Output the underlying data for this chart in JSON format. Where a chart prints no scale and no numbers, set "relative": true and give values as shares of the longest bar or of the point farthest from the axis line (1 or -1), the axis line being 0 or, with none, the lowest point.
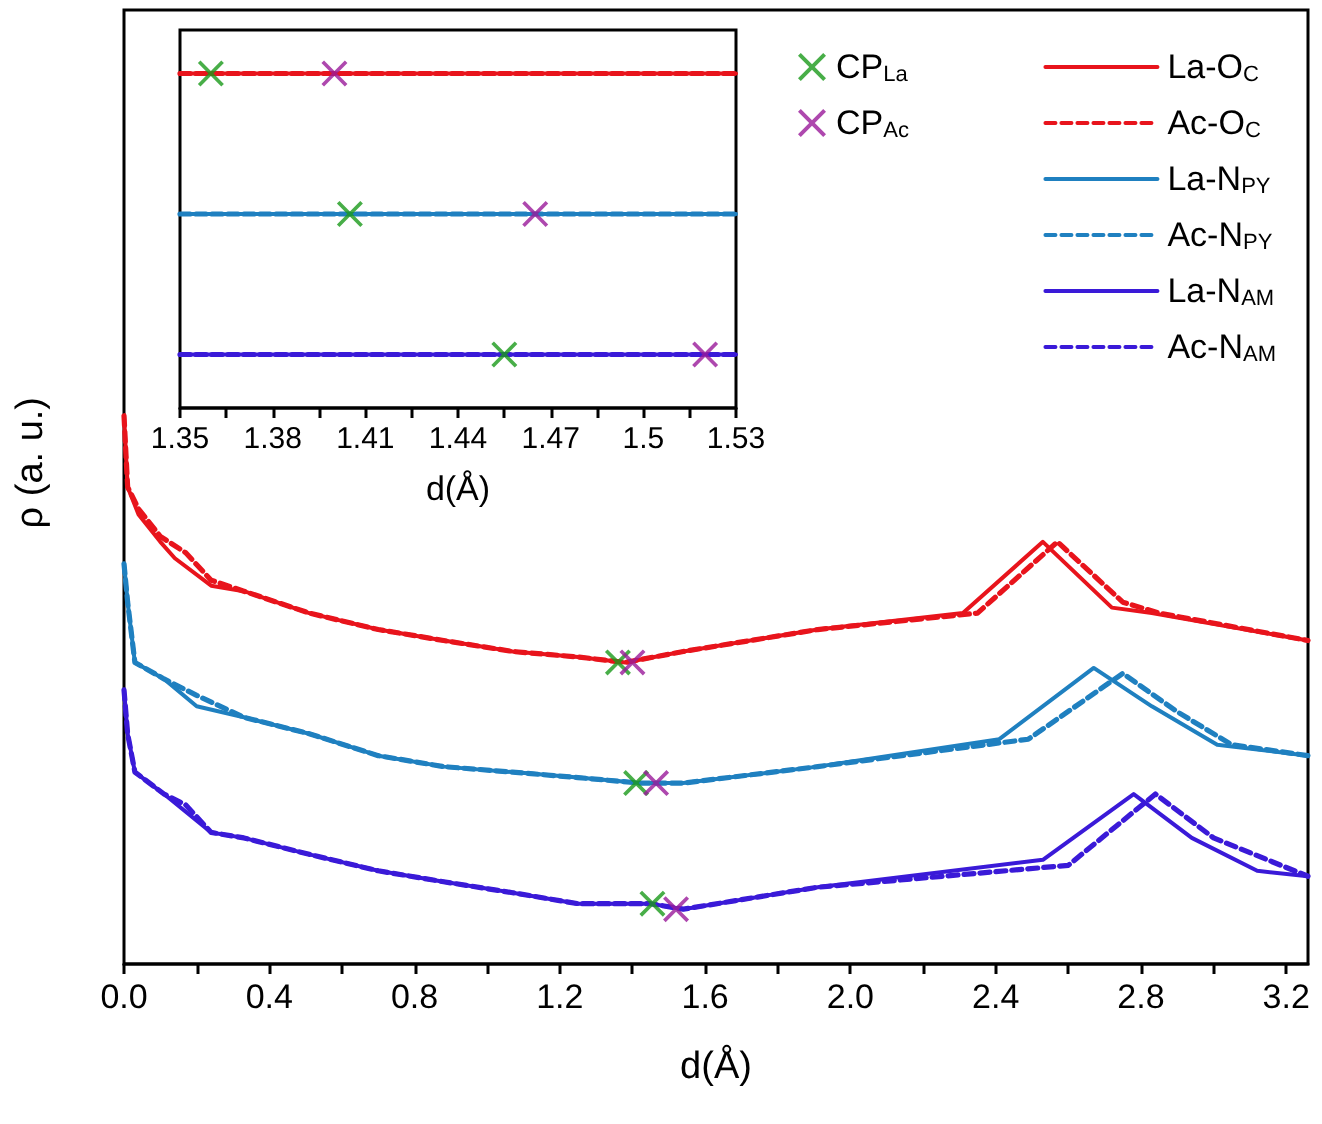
{
  "chart_data": [
    {
      "type": "line",
      "xlabel": "d(Å)",
      "ylabel": "ρ (a. u.)",
      "relative": true,
      "legend": "top right",
      "xlim": [
        0,
        3.26
      ],
      "xticks": [
        {
          "value": 0,
          "label": "0.0"
        },
        {
          "value": 0.2,
          "label": null
        },
        {
          "value": 0.4,
          "label": "0.4"
        },
        {
          "value": 0.6,
          "label": null
        },
        {
          "value": 0.8,
          "label": "0.8"
        },
        {
          "value": 1.0,
          "label": null
        },
        {
          "value": 1.2,
          "label": "1.2"
        },
        {
          "value": 1.4,
          "label": null
        },
        {
          "value": 1.6,
          "label": "1.6"
        },
        {
          "value": 1.8,
          "label": null
        },
        {
          "value": 2.0,
          "label": "2.0"
        },
        {
          "value": 2.2,
          "label": null
        },
        {
          "value": 2.4,
          "label": "2.4"
        },
        {
          "value": 2.6,
          "label": null
        },
        {
          "value": 2.8,
          "label": "2.8"
        },
        {
          "value": 3.0,
          "label": null
        },
        {
          "value": 3.2,
          "label": "3.2"
        }
      ],
      "series": [
        {
          "name": "CP$_{La}$",
          "type": "scatter",
          "marker": "cross",
          "color": "#1a9a1a",
          "x": [
            1.36,
            1.41,
            1.455
          ],
          "values": [
            0.55,
            0.33,
            0.11
          ]
        },
        {
          "name": "CP$_{Ac}$",
          "type": "scatter",
          "marker": "cross",
          "color": "#9a1a9a",
          "x": [
            1.4,
            1.465,
            1.52
          ],
          "values": [
            0.55,
            0.33,
            0.1
          ]
        },
        {
          "name": "La-O$_{C}$",
          "line_style": "solid",
          "marker": "none",
          "color": "#e8141c",
          "x": [
            0,
            0.01,
            0.04,
            0.1,
            0.14,
            0.24,
            0.33,
            0.51,
            0.7,
            0.88,
            1.07,
            1.25,
            1.38,
            1.54,
            1.91,
            2.31,
            2.53,
            2.72,
            2.83,
            3.26
          ],
          "values": [
            1.0,
            0.87,
            0.82,
            0.77,
            0.74,
            0.69,
            0.68,
            0.64,
            0.61,
            0.59,
            0.57,
            0.56,
            0.55,
            0.57,
            0.61,
            0.64,
            0.77,
            0.65,
            0.64,
            0.59
          ]
        },
        {
          "name": "Ac-O$_{C}$",
          "line_style": "dashed",
          "marker": "none",
          "color": "#e8141c",
          "x": [
            0,
            0.01,
            0.04,
            0.1,
            0.17,
            0.24,
            0.33,
            0.51,
            0.7,
            0.88,
            1.07,
            1.25,
            1.38,
            1.54,
            1.91,
            2.35,
            2.57,
            2.75,
            2.85,
            3.26
          ],
          "values": [
            1.0,
            0.87,
            0.83,
            0.78,
            0.75,
            0.7,
            0.68,
            0.64,
            0.61,
            0.59,
            0.57,
            0.56,
            0.55,
            0.57,
            0.61,
            0.64,
            0.77,
            0.66,
            0.64,
            0.59
          ]
        },
        {
          "name": "La-N$_{PY}$",
          "line_style": "solid",
          "marker": "none",
          "color": "#1f80c0",
          "x": [
            0,
            0.01,
            0.03,
            0.11,
            0.2,
            0.33,
            0.51,
            0.7,
            0.88,
            1.07,
            1.25,
            1.42,
            1.54,
            1.91,
            2.41,
            2.67,
            2.83,
            3.01,
            3.26
          ],
          "values": [
            0.73,
            0.66,
            0.55,
            0.52,
            0.47,
            0.45,
            0.42,
            0.38,
            0.36,
            0.35,
            0.34,
            0.33,
            0.33,
            0.36,
            0.41,
            0.54,
            0.47,
            0.4,
            0.38
          ]
        },
        {
          "name": "Ac-N$_{PY}$",
          "line_style": "dashed",
          "marker": "none",
          "color": "#1f80c0",
          "x": [
            0,
            0.01,
            0.03,
            0.11,
            0.2,
            0.33,
            0.51,
            0.7,
            0.88,
            1.07,
            1.25,
            1.42,
            1.54,
            1.91,
            2.49,
            2.75,
            2.9,
            3.05,
            3.26
          ],
          "values": [
            0.73,
            0.66,
            0.55,
            0.52,
            0.49,
            0.45,
            0.42,
            0.38,
            0.36,
            0.35,
            0.34,
            0.33,
            0.33,
            0.36,
            0.41,
            0.53,
            0.46,
            0.4,
            0.38
          ]
        },
        {
          "name": "La-N$_{AM}$",
          "line_style": "solid",
          "marker": "none",
          "color": "#3a1ad8",
          "x": [
            0,
            0.01,
            0.03,
            0.11,
            0.24,
            0.33,
            0.51,
            0.7,
            0.88,
            1.07,
            1.25,
            1.45,
            1.54,
            1.91,
            2.53,
            2.78,
            2.94,
            3.12,
            3.26
          ],
          "values": [
            0.5,
            0.42,
            0.35,
            0.31,
            0.24,
            0.23,
            0.2,
            0.17,
            0.15,
            0.13,
            0.11,
            0.11,
            0.1,
            0.14,
            0.19,
            0.31,
            0.23,
            0.17,
            0.16
          ]
        },
        {
          "name": "Ac-N$_{AM}$",
          "line_style": "dashed",
          "marker": "none",
          "color": "#3a1ad8",
          "x": [
            0,
            0.01,
            0.03,
            0.11,
            0.17,
            0.24,
            0.33,
            0.51,
            0.7,
            0.88,
            1.07,
            1.25,
            1.45,
            1.54,
            1.91,
            2.6,
            2.84,
            3.0,
            3.26
          ],
          "values": [
            0.5,
            0.42,
            0.35,
            0.31,
            0.29,
            0.24,
            0.23,
            0.2,
            0.17,
            0.15,
            0.13,
            0.11,
            0.11,
            0.1,
            0.14,
            0.18,
            0.31,
            0.23,
            0.16
          ]
        }
      ]
    },
    {
      "type": "line",
      "xlabel": "d(Å)",
      "relative": true,
      "xlim": [
        1.35,
        1.53
      ],
      "xticks": [
        1.35,
        {
          "value": 1.365,
          "label": null
        },
        1.38,
        {
          "value": 1.395,
          "label": null
        },
        1.41,
        {
          "value": 1.425,
          "label": null
        },
        1.44,
        {
          "value": 1.455,
          "label": null
        },
        1.47,
        {
          "value": 1.485,
          "label": null
        },
        1.5,
        {
          "value": 1.515,
          "label": null
        },
        1.53
      ],
      "series": [
        {
          "line_style": "solid",
          "marker": "none",
          "color": "#e8141c",
          "x": [
            1.35,
            1.53
          ],
          "values": [
            1,
            1
          ]
        },
        {
          "line_style": "dashed",
          "marker": "none",
          "color": "#e8141c",
          "x": [
            1.35,
            1.53
          ],
          "values": [
            1,
            1
          ]
        },
        {
          "line_style": "solid",
          "marker": "none",
          "color": "#1f80c0",
          "x": [
            1.35,
            1.53
          ],
          "values": [
            0.58,
            0.58
          ]
        },
        {
          "line_style": "dashed",
          "marker": "none",
          "color": "#1f80c0",
          "x": [
            1.35,
            1.53
          ],
          "values": [
            0.58,
            0.58
          ]
        },
        {
          "line_style": "solid",
          "marker": "none",
          "color": "#3a1ad8",
          "x": [
            1.35,
            1.53
          ],
          "values": [
            0.16,
            0.16
          ]
        },
        {
          "line_style": "dashed",
          "marker": "none",
          "color": "#3a1ad8",
          "x": [
            1.35,
            1.53
          ],
          "values": [
            0.16,
            0.16
          ]
        },
        {
          "type": "scatter",
          "marker": "cross",
          "color": "#1a9a1a",
          "x": [
            1.36,
            1.405,
            1.455
          ],
          "values": [
            1,
            0.58,
            0.16
          ]
        },
        {
          "type": "scatter",
          "marker": "cross",
          "color": "#9a1a9a",
          "x": [
            1.4,
            1.465,
            1.52
          ],
          "values": [
            1,
            0.58,
            0.16
          ]
        }
      ]
    }
  ]
}
